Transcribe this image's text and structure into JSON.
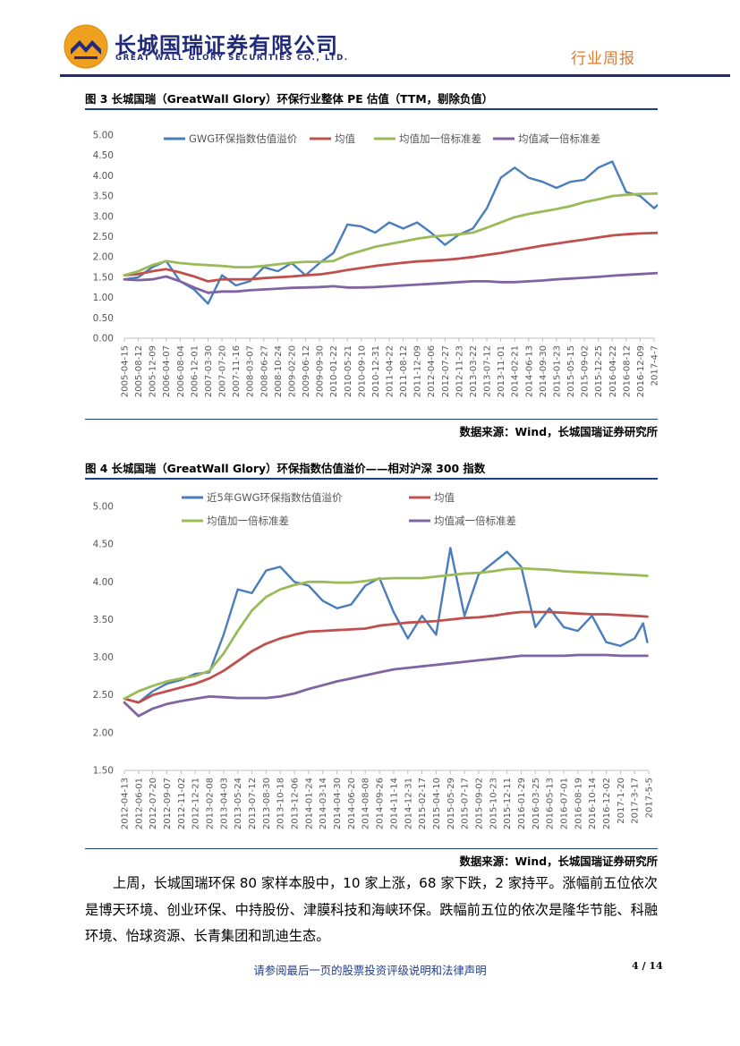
{
  "header": {
    "company_cn": "长城国瑞证券有限公司",
    "company_en": "GREAT WALL GLORY SECURITIES CO., LTD.",
    "report_type": "行业周报",
    "brand_color": "#1f2b7a",
    "accent_color": "#e07a2e",
    "logo": "great-wall-glory-logo"
  },
  "figure3": {
    "title": "图 3 长城国瑞（GreatWall Glory）环保行业整体 PE 估值（TTM，剔除负值）",
    "source": "数据来源：Wind，长城国瑞证券研究所"
  },
  "figure4": {
    "title": "图 4 长城国瑞（GreatWall Glory）环保指数估值溢价——相对沪深 300 指数",
    "source": "数据来源：Wind，长城国瑞证券研究所"
  },
  "chart_data": [
    {
      "type": "line",
      "title": "图 3 长城国瑞（GreatWall Glory）环保行业整体 PE 估值（TTM，剔除负值）",
      "ylim": [
        0,
        5
      ],
      "yticks": [
        "0.00",
        "0.50",
        "1.00",
        "1.50",
        "2.00",
        "2.50",
        "3.00",
        "3.50",
        "4.00",
        "4.50",
        "5.00"
      ],
      "categories": [
        "2005-04-15",
        "2005-08-12",
        "2005-12-09",
        "2006-04-07",
        "2006-08-04",
        "2006-12-01",
        "2007-03-30",
        "2007-07-20",
        "2007-11-16",
        "2008-03-07",
        "2008-06-27",
        "2008-10-24",
        "2009-02-20",
        "2009-06-12",
        "2009-09-30",
        "2010-01-22",
        "2010-05-21",
        "2010-09-10",
        "2010-12-31",
        "2011-04-22",
        "2011-08-12",
        "2011-12-09",
        "2012-04-06",
        "2012-07-27",
        "2012-11-23",
        "2013-03-22",
        "2013-07-12",
        "2013-11-01",
        "2014-02-21",
        "2014-06-13",
        "2014-09-30",
        "2015-01-23",
        "2015-05-15",
        "2015-09-02",
        "2015-12-25",
        "2016-04-22",
        "2016-08-12",
        "2016-12-09",
        "2017-4-7"
      ],
      "legend": [
        "GWG环保指数估值溢价",
        "均值",
        "均值加一倍标准差",
        "均值减一倍标准差"
      ],
      "colors": [
        "#4a7dbb",
        "#c0504d",
        "#9bbb59",
        "#8064a2"
      ],
      "series": [
        {
          "name": "GWG环保指数估值溢价",
          "values": [
            1.45,
            1.5,
            1.75,
            1.9,
            1.4,
            1.2,
            0.85,
            1.55,
            1.3,
            1.4,
            1.75,
            1.65,
            1.85,
            1.55,
            1.85,
            2.1,
            2.8,
            2.75,
            2.6,
            2.85,
            2.7,
            2.85,
            2.6,
            2.3,
            2.55,
            2.7,
            3.2,
            3.95,
            4.2,
            3.95,
            3.85,
            3.7,
            3.85,
            3.9,
            4.2,
            4.35,
            3.6,
            3.5,
            3.2,
            3.35,
            3.2
          ],
          "x": [
            0,
            1,
            2,
            3,
            4,
            5,
            6,
            7,
            8,
            9,
            10,
            11,
            12,
            13,
            14,
            15,
            16,
            17,
            18,
            19,
            20,
            21,
            22,
            23,
            24,
            25,
            26,
            27,
            28,
            29,
            30,
            31,
            32,
            33,
            34,
            35,
            36,
            37,
            38,
            38.5,
            38.8
          ]
        },
        {
          "name": "均值",
          "values": [
            1.55,
            1.58,
            1.65,
            1.7,
            1.62,
            1.52,
            1.4,
            1.45,
            1.45,
            1.45,
            1.48,
            1.5,
            1.52,
            1.55,
            1.57,
            1.62,
            1.68,
            1.73,
            1.78,
            1.82,
            1.86,
            1.89,
            1.91,
            1.93,
            1.96,
            2.0,
            2.05,
            2.1,
            2.16,
            2.22,
            2.28,
            2.33,
            2.38,
            2.43,
            2.48,
            2.53,
            2.56,
            2.58,
            2.59,
            2.6
          ],
          "x": [
            0,
            1,
            2,
            3,
            4,
            5,
            6,
            7,
            8,
            9,
            10,
            11,
            12,
            13,
            14,
            15,
            16,
            17,
            18,
            19,
            20,
            21,
            22,
            23,
            24,
            25,
            26,
            27,
            28,
            29,
            30,
            31,
            32,
            33,
            34,
            35,
            36,
            37,
            38,
            38.8
          ]
        },
        {
          "name": "均值加一倍标准差",
          "values": [
            1.55,
            1.65,
            1.8,
            1.9,
            1.85,
            1.82,
            1.8,
            1.78,
            1.75,
            1.75,
            1.78,
            1.82,
            1.86,
            1.88,
            1.88,
            1.9,
            2.05,
            2.15,
            2.25,
            2.32,
            2.38,
            2.45,
            2.5,
            2.53,
            2.56,
            2.6,
            2.72,
            2.85,
            2.98,
            3.06,
            3.12,
            3.18,
            3.25,
            3.35,
            3.42,
            3.5,
            3.53,
            3.55,
            3.56,
            3.57
          ],
          "x": [
            0,
            1,
            2,
            3,
            4,
            5,
            6,
            7,
            8,
            9,
            10,
            11,
            12,
            13,
            14,
            15,
            16,
            17,
            18,
            19,
            20,
            21,
            22,
            23,
            24,
            25,
            26,
            27,
            28,
            29,
            30,
            31,
            32,
            33,
            34,
            35,
            36,
            37,
            38,
            38.8
          ]
        },
        {
          "name": "均值减一倍标准差",
          "values": [
            1.45,
            1.43,
            1.45,
            1.52,
            1.4,
            1.25,
            1.12,
            1.15,
            1.15,
            1.18,
            1.2,
            1.22,
            1.24,
            1.25,
            1.26,
            1.28,
            1.25,
            1.25,
            1.26,
            1.28,
            1.3,
            1.32,
            1.34,
            1.36,
            1.38,
            1.4,
            1.4,
            1.38,
            1.38,
            1.4,
            1.42,
            1.45,
            1.47,
            1.49,
            1.51,
            1.54,
            1.56,
            1.58,
            1.6,
            1.62
          ],
          "x": [
            0,
            1,
            2,
            3,
            4,
            5,
            6,
            7,
            8,
            9,
            10,
            11,
            12,
            13,
            14,
            15,
            16,
            17,
            18,
            19,
            20,
            21,
            22,
            23,
            24,
            25,
            26,
            27,
            28,
            29,
            30,
            31,
            32,
            33,
            34,
            35,
            36,
            37,
            38,
            38.8
          ]
        }
      ]
    },
    {
      "type": "line",
      "title": "图 4 长城国瑞（GreatWall Glory）环保指数估值溢价——相对沪深 300 指数",
      "ylim": [
        1.5,
        5
      ],
      "yticks": [
        "1.50",
        "2.00",
        "2.50",
        "3.00",
        "3.50",
        "4.00",
        "4.50",
        "5.00"
      ],
      "categories": [
        "2012-04-13",
        "2012-06-01",
        "2012-07-20",
        "2012-09-07",
        "2012-11-02",
        "2012-12-21",
        "2013-02-08",
        "2013-04-03",
        "2013-05-24",
        "2013-07-12",
        "2013-08-30",
        "2013-10-18",
        "2013-12-06",
        "2014-01-24",
        "2014-03-14",
        "2014-04-30",
        "2014-06-20",
        "2014-08-08",
        "2014-09-26",
        "2014-11-14",
        "2014-12-31",
        "2015-02-17",
        "2015-04-10",
        "2015-05-29",
        "2015-07-17",
        "2015-09-02",
        "2015-10-23",
        "2015-12-11",
        "2016-01-29",
        "2016-03-25",
        "2016-05-13",
        "2016-07-01",
        "2016-08-19",
        "2016-10-14",
        "2016-12-02",
        "2017-1-20",
        "2017-3-17",
        "2017-5-5"
      ],
      "legend": [
        "近5年GWG环保指数估值溢价",
        "均值",
        "均值加一倍标准差",
        "均值减一倍标准差"
      ],
      "colors": [
        "#4a7dbb",
        "#c0504d",
        "#9bbb59",
        "#8064a2"
      ],
      "series": [
        {
          "name": "近5年GWG环保指数估值溢价",
          "values": [
            2.45,
            2.4,
            2.55,
            2.65,
            2.7,
            2.78,
            2.8,
            3.3,
            3.9,
            3.85,
            4.15,
            4.2,
            4.0,
            3.95,
            3.75,
            3.65,
            3.7,
            3.95,
            4.05,
            3.6,
            3.25,
            3.55,
            3.3,
            4.45,
            3.55,
            4.1,
            4.25,
            4.4,
            4.2,
            3.4,
            3.65,
            3.4,
            3.35,
            3.55,
            3.2,
            3.15,
            3.25,
            3.45,
            3.2
          ],
          "x": [
            0,
            1,
            2,
            3,
            4,
            5,
            6,
            7,
            8,
            9,
            10,
            11,
            12,
            13,
            14,
            15,
            16,
            17,
            18,
            19,
            20,
            21,
            22,
            23,
            24,
            25,
            26,
            27,
            28,
            29,
            30,
            31,
            32,
            33,
            34,
            35,
            36,
            36.6,
            36.9
          ]
        },
        {
          "name": "均值",
          "values": [
            2.45,
            2.4,
            2.5,
            2.55,
            2.6,
            2.65,
            2.72,
            2.82,
            2.95,
            3.08,
            3.18,
            3.25,
            3.3,
            3.34,
            3.35,
            3.36,
            3.37,
            3.38,
            3.42,
            3.44,
            3.46,
            3.47,
            3.48,
            3.5,
            3.52,
            3.53,
            3.55,
            3.58,
            3.6,
            3.6,
            3.6,
            3.59,
            3.58,
            3.57,
            3.57,
            3.56,
            3.55,
            3.54
          ],
          "x": [
            0,
            1,
            2,
            3,
            4,
            5,
            6,
            7,
            8,
            9,
            10,
            11,
            12,
            13,
            14,
            15,
            16,
            17,
            18,
            19,
            20,
            21,
            22,
            23,
            24,
            25,
            26,
            27,
            28,
            29,
            30,
            31,
            32,
            33,
            34,
            35,
            36,
            36.9
          ]
        },
        {
          "name": "均值加一倍标准差",
          "values": [
            2.45,
            2.55,
            2.62,
            2.68,
            2.72,
            2.75,
            2.82,
            3.05,
            3.35,
            3.62,
            3.8,
            3.9,
            3.96,
            4.0,
            4.0,
            3.99,
            3.99,
            4.01,
            4.04,
            4.05,
            4.05,
            4.05,
            4.07,
            4.09,
            4.11,
            4.12,
            4.14,
            4.17,
            4.18,
            4.17,
            4.16,
            4.14,
            4.13,
            4.12,
            4.11,
            4.1,
            4.09,
            4.08
          ],
          "x": [
            0,
            1,
            2,
            3,
            4,
            5,
            6,
            7,
            8,
            9,
            10,
            11,
            12,
            13,
            14,
            15,
            16,
            17,
            18,
            19,
            20,
            21,
            22,
            23,
            24,
            25,
            26,
            27,
            28,
            29,
            30,
            31,
            32,
            33,
            34,
            35,
            36,
            36.9
          ]
        },
        {
          "name": "均值减一倍标准差",
          "values": [
            2.4,
            2.22,
            2.32,
            2.38,
            2.42,
            2.45,
            2.48,
            2.47,
            2.46,
            2.46,
            2.46,
            2.48,
            2.52,
            2.58,
            2.63,
            2.68,
            2.72,
            2.76,
            2.8,
            2.84,
            2.86,
            2.88,
            2.9,
            2.92,
            2.94,
            2.96,
            2.98,
            3.0,
            3.02,
            3.02,
            3.02,
            3.02,
            3.03,
            3.03,
            3.03,
            3.02,
            3.02,
            3.02
          ],
          "x": [
            0,
            1,
            2,
            3,
            4,
            5,
            6,
            7,
            8,
            9,
            10,
            11,
            12,
            13,
            14,
            15,
            16,
            17,
            18,
            19,
            20,
            21,
            22,
            23,
            24,
            25,
            26,
            27,
            28,
            29,
            30,
            31,
            32,
            33,
            34,
            35,
            36,
            36.9
          ]
        }
      ]
    }
  ],
  "body": {
    "paragraph": "上周，长城国瑞环保 80 家样本股中，10 家上涨，68 家下跌，2 家持平。涨幅前五位依次是博天环境、创业环保、中持股份、津膜科技和海峡环保。跌幅前五位的依次是隆华节能、科融环境、怡球资源、长青集团和凯迪生态。"
  },
  "footer": {
    "note": "请参阅最后一页的股票投资评级说明和法律声明",
    "page_number": "4 / 14"
  }
}
